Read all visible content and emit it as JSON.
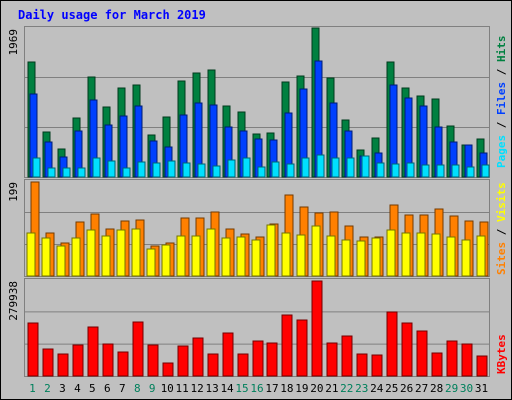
{
  "title": "Daily usage for March 2019",
  "colors": {
    "background": "#c0c0c0",
    "title": "#0000ff",
    "hits": "#008040",
    "files": "#0040ff",
    "pages": "#00e0ff",
    "visits": "#ff8000",
    "sites": "#ffff00",
    "kbytes": "#ff0000",
    "day_weekday": "#000000",
    "day_weekend": "#00805c"
  },
  "chart_data": [
    {
      "type": "bar",
      "name": "hits-files-pages",
      "x": [
        "1",
        "2",
        "3",
        "4",
        "5",
        "6",
        "7",
        "8",
        "9",
        "10",
        "11",
        "12",
        "13",
        "14",
        "15",
        "16",
        "17",
        "18",
        "19",
        "20",
        "21",
        "22",
        "23",
        "24",
        "25",
        "26",
        "27",
        "28",
        "29",
        "30",
        "31"
      ],
      "ymax_label": "1969",
      "ylim": [
        0,
        1969
      ],
      "legend": [
        "Pages",
        "Files",
        "Hits"
      ],
      "series": [
        {
          "name": "Hits",
          "values": [
            1540,
            620,
            400,
            800,
            1340,
            950,
            1200,
            1230,
            580,
            810,
            1290,
            1390,
            1430,
            960,
            880,
            590,
            600,
            1270,
            1350,
            1980,
            1320,
            780,
            380,
            540,
            1540,
            1190,
            1090,
            1050,
            700,
            450,
            520
          ]
        },
        {
          "name": "Files",
          "values": [
            1110,
            480,
            290,
            630,
            1040,
            710,
            830,
            960,
            500,
            420,
            840,
            1000,
            970,
            680,
            630,
            530,
            510,
            870,
            1180,
            1550,
            1000,
            630,
            300,
            340,
            1230,
            1060,
            960,
            680,
            480,
            450,
            340
          ]
        },
        {
          "name": "Pages",
          "values": [
            280,
            150,
            140,
            150,
            270,
            230,
            150,
            220,
            210,
            230,
            210,
            200,
            170,
            250,
            270,
            160,
            220,
            200,
            270,
            320,
            280,
            280,
            300,
            210,
            200,
            210,
            190,
            180,
            190,
            160,
            180
          ]
        }
      ]
    },
    {
      "type": "bar",
      "name": "visits-sites",
      "x": [
        "1",
        "2",
        "3",
        "4",
        "5",
        "6",
        "7",
        "8",
        "9",
        "10",
        "11",
        "12",
        "13",
        "14",
        "15",
        "16",
        "17",
        "18",
        "19",
        "20",
        "21",
        "22",
        "23",
        "24",
        "25",
        "26",
        "27",
        "28",
        "29",
        "30",
        "31"
      ],
      "ymax_label": "199",
      "ylim": [
        0,
        199
      ],
      "legend": [
        "Sites",
        "Visits"
      ],
      "series": [
        {
          "name": "Visits",
          "values": [
            199,
            94,
            72,
            117,
            132,
            102,
            118,
            121,
            67,
            73,
            124,
            125,
            136,
            101,
            92,
            84,
            111,
            173,
            147,
            135,
            136,
            107,
            86,
            86,
            151,
            130,
            130,
            143,
            129,
            118,
            117
          ]
        },
        {
          "name": "Sites",
          "values": [
            94,
            82,
            67,
            82,
            99,
            88,
            99,
            101,
            61,
            69,
            88,
            88,
            101,
            83,
            86,
            79,
            110,
            93,
            90,
            108,
            88,
            78,
            77,
            83,
            99,
            93,
            93,
            91,
            85,
            79,
            87
          ]
        }
      ]
    },
    {
      "type": "bar",
      "name": "kbytes",
      "x": [
        "1",
        "2",
        "3",
        "4",
        "5",
        "6",
        "7",
        "8",
        "9",
        "10",
        "11",
        "12",
        "13",
        "14",
        "15",
        "16",
        "17",
        "18",
        "19",
        "20",
        "21",
        "22",
        "23",
        "24",
        "25",
        "26",
        "27",
        "28",
        "29",
        "30",
        "31"
      ],
      "ymax_label": "279938",
      "ylim": [
        0,
        279938
      ],
      "legend": [
        "KBytes"
      ],
      "series": [
        {
          "name": "KBytes",
          "values": [
            160000,
            84000,
            70000,
            96000,
            146000,
            97000,
            76000,
            162000,
            94000,
            44000,
            91000,
            115000,
            70000,
            131000,
            69000,
            106000,
            101000,
            181000,
            167000,
            279938,
            100000,
            121000,
            68000,
            65000,
            190000,
            159000,
            136000,
            72000,
            108000,
            98000,
            64000
          ]
        }
      ]
    }
  ]
}
